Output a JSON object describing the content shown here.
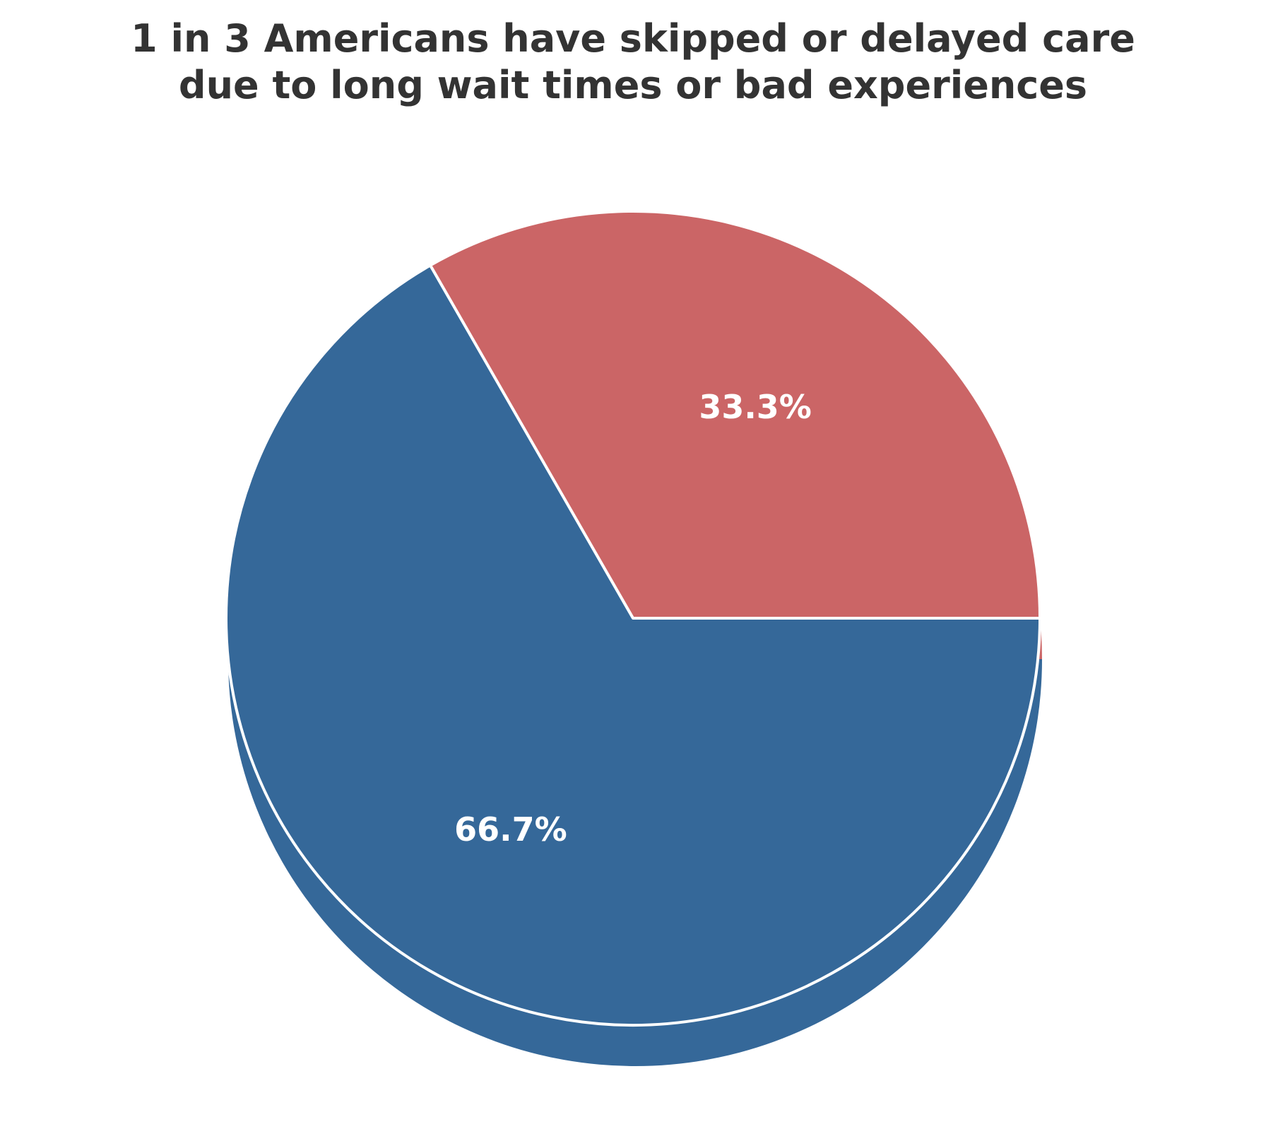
{
  "chart_data": {
    "type": "pie",
    "title_lines": [
      "1 in 3 Americans have skipped or delayed care",
      "due to long wait times or bad experiences"
    ],
    "slices": [
      {
        "label": "33.3%",
        "value": 33.3,
        "color": "#cb6566"
      },
      {
        "label": "66.7%",
        "value": 66.7,
        "color": "#356899"
      }
    ],
    "start_angle_deg": 0,
    "direction": "counterclockwise",
    "label_color": "#ffffff",
    "edge_color": "#ffffff",
    "shadow": true,
    "legend": "none"
  }
}
